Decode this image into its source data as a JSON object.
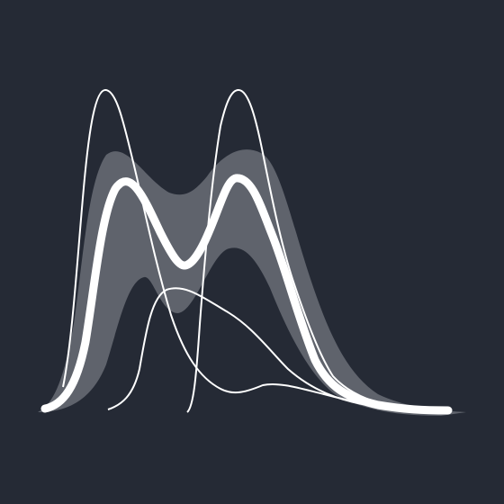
{
  "logo": {
    "colors": {
      "background": "#252a35",
      "band": "#5f636c",
      "line": "#ffffff"
    }
  }
}
